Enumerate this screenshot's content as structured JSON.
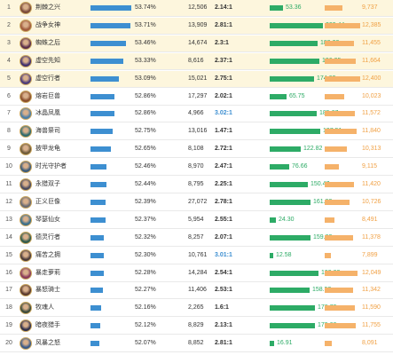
{
  "colors": {
    "winrate_bar": "#3d8fd1",
    "gold_bar": "#2dab66",
    "damage_bar": "#f5b26a",
    "damage_text": "#f0a044",
    "top_row_bg": "#fdf6dd"
  },
  "rows": [
    {
      "rank": "1",
      "name": "荆棘之兴",
      "winrate": "53.74%",
      "games": "12,506",
      "kda": "2.14:1",
      "gold": "53.36",
      "damage": "9,737",
      "avatar_color": "#7a4a3a"
    },
    {
      "rank": "2",
      "name": "战争女神",
      "winrate": "53.71%",
      "games": "13,909",
      "kda": "2.81:1",
      "gold": "209.44",
      "damage": "12,385",
      "avatar_color": "#a05a3c"
    },
    {
      "rank": "3",
      "name": "蜘蛛之后",
      "winrate": "53.46%",
      "games": "14,674",
      "kda": "2.3:1",
      "gold": "189.23",
      "damage": "11,455",
      "avatar_color": "#5a2e4a"
    },
    {
      "rank": "4",
      "name": "虚空先知",
      "winrate": "53.33%",
      "games": "8,616",
      "kda": "2.37:1",
      "gold": "196.35",
      "damage": "11,664",
      "avatar_color": "#3f2f6e"
    },
    {
      "rank": "5",
      "name": "虚空行者",
      "winrate": "53.09%",
      "games": "15,021",
      "kda": "2.75:1",
      "gold": "174.62",
      "damage": "12,400",
      "avatar_color": "#4b3a7a"
    },
    {
      "rank": "6",
      "name": "熔岩巨兽",
      "winrate": "52.86%",
      "games": "17,297",
      "kda": "2.02:1",
      "gold": "65.75",
      "damage": "10,023",
      "avatar_color": "#8a4e2c"
    },
    {
      "rank": "7",
      "name": "冰晶凤凰",
      "winrate": "52.86%",
      "games": "4,966",
      "kda": "3.02:1",
      "gold": "185.67",
      "damage": "11,572",
      "kda_blue": true,
      "avatar_color": "#4a7ea8"
    },
    {
      "rank": "8",
      "name": "海兽祭司",
      "winrate": "52.75%",
      "games": "13,016",
      "kda": "1.47:1",
      "gold": "197.51",
      "damage": "11,840",
      "avatar_color": "#2e6a6e"
    },
    {
      "rank": "9",
      "name": "披甲龙龟",
      "winrate": "52.65%",
      "games": "8,108",
      "kda": "2.72:1",
      "gold": "122.82",
      "damage": "10,313",
      "avatar_color": "#6e5a3a"
    },
    {
      "rank": "10",
      "name": "时光守护者",
      "winrate": "52.46%",
      "games": "8,970",
      "kda": "2.47:1",
      "gold": "76.66",
      "damage": "9,115",
      "avatar_color": "#3a5a7a"
    },
    {
      "rank": "11",
      "name": "永猎双子",
      "winrate": "52.44%",
      "games": "8,795",
      "kda": "2.25:1",
      "gold": "150.47",
      "damage": "11,420",
      "avatar_color": "#4a4a5e"
    },
    {
      "rank": "12",
      "name": "正义巨像",
      "winrate": "52.39%",
      "games": "27,072",
      "kda": "2.78:1",
      "gold": "161.93",
      "damage": "10,726",
      "avatar_color": "#6a6a72"
    },
    {
      "rank": "13",
      "name": "琴瑟仙女",
      "winrate": "52.37%",
      "games": "5,954",
      "kda": "2.55:1",
      "gold": "24.30",
      "damage": "8,491",
      "avatar_color": "#3a6e8a"
    },
    {
      "rank": "14",
      "name": "德灵行者",
      "winrate": "52.32%",
      "games": "8,257",
      "kda": "2.07:1",
      "gold": "159.03",
      "damage": "11,378",
      "avatar_color": "#2e5a4a"
    },
    {
      "rank": "15",
      "name": "痛苦之拥",
      "winrate": "52.30%",
      "games": "10,761",
      "kda": "3.01:1",
      "gold": "12.58",
      "damage": "7,899",
      "kda_blue": true,
      "avatar_color": "#4a3a3a"
    },
    {
      "rank": "16",
      "name": "暴走萝莉",
      "winrate": "52.28%",
      "games": "14,284",
      "kda": "2.54:1",
      "gold": "193.02",
      "damage": "12,049",
      "avatar_color": "#8a3a5a"
    },
    {
      "rank": "17",
      "name": "暴怒骑士",
      "winrate": "52.27%",
      "games": "11,406",
      "kda": "2.53:1",
      "gold": "158.53",
      "damage": "11,342",
      "avatar_color": "#5a3a2e"
    },
    {
      "rank": "18",
      "name": "牧魂人",
      "winrate": "52.16%",
      "games": "2,265",
      "kda": "1.6:1",
      "gold": "178.73",
      "damage": "11,590",
      "avatar_color": "#3a4a3a"
    },
    {
      "rank": "19",
      "name": "暗夜猎手",
      "winrate": "52.12%",
      "games": "8,829",
      "kda": "2.13:1",
      "gold": "179.68",
      "damage": "11,755",
      "avatar_color": "#2e2e4a"
    },
    {
      "rank": "20",
      "name": "风暴之怒",
      "winrate": "52.07%",
      "games": "8,852",
      "kda": "2.81:1",
      "gold": "16.91",
      "damage": "8,091",
      "avatar_color": "#3a5a8a"
    }
  ]
}
